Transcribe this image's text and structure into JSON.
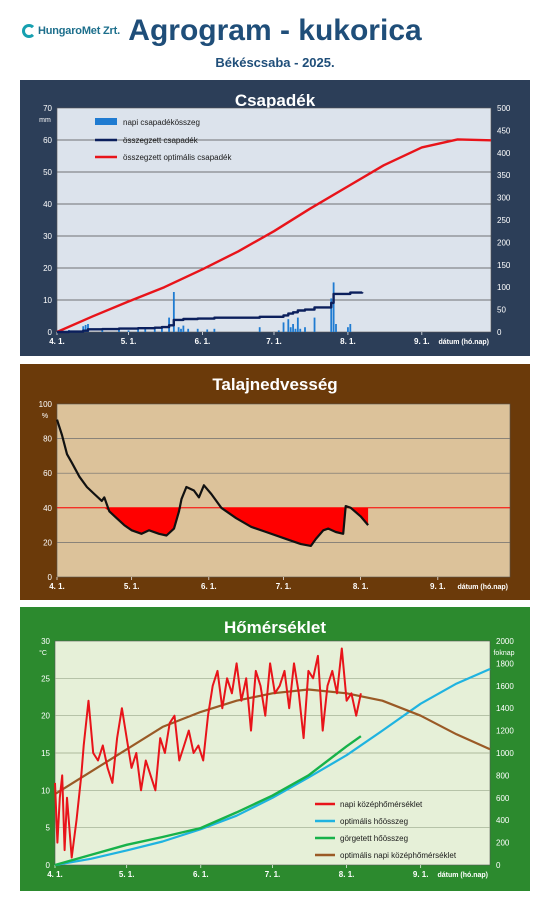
{
  "header": {
    "logo_text": "HungaroMet Zrt.",
    "title": "Agrogram - kukorica",
    "subtitle": "Békéscsaba - 2025."
  },
  "colors": {
    "rain_panel": "#2c3e58",
    "soil_panel": "#6b3a0a",
    "temp_panel": "#2c8a2e",
    "daily_rain": "#1f7bd1",
    "cum_rain": "#0b1f5c",
    "optimal": "#e8141a",
    "soil_fill": "#ff0000",
    "heat_optimal": "#1fb3e0",
    "heat_rolling": "#17b24a",
    "temp_optimal": "#9a5a26"
  },
  "charts": [
    {
      "id": "rain",
      "title": "Csapadék",
      "ylabel_left": "mm",
      "xlabel": "dátum (hó.nap)",
      "x_ticks": [
        "4. 1.",
        "5. 1.",
        "6. 1.",
        "7. 1.",
        "8. 1.",
        "9. 1."
      ],
      "y_ticks_left": [
        "0",
        "10",
        "20",
        "30",
        "40",
        "50",
        "60",
        "70"
      ],
      "y_ticks_right": [
        "0",
        "50",
        "100",
        "150",
        "200",
        "250",
        "300",
        "350",
        "400",
        "450",
        "500"
      ],
      "legend": [
        "napi csapadékösszeg",
        "összegzett csapadék",
        "összegzett optimális csapadék"
      ]
    },
    {
      "id": "soil",
      "title": "Talajnedvesség",
      "ylabel_left": "%",
      "xlabel": "dátum (hó.nap)",
      "x_ticks": [
        "4. 1.",
        "5. 1.",
        "6. 1.",
        "7. 1.",
        "8. 1.",
        "9. 1."
      ],
      "y_ticks_left": [
        "0",
        "20",
        "40",
        "60",
        "80",
        "100"
      ]
    },
    {
      "id": "temp",
      "title": "Hőmérséklet",
      "ylabel_left": "°C",
      "ylabel_right": "foknap",
      "xlabel": "dátum (hó.nap)",
      "x_ticks": [
        "4. 1.",
        "5. 1.",
        "6. 1.",
        "7. 1.",
        "8. 1.",
        "9. 1."
      ],
      "y_ticks_left": [
        "0",
        "5",
        "10",
        "15",
        "20",
        "25",
        "30"
      ],
      "y_ticks_right": [
        "0",
        "200",
        "400",
        "600",
        "800",
        "1000",
        "1200",
        "1400",
        "1600",
        "1800",
        "2000"
      ],
      "legend": [
        "napi középhőmérséklet",
        "optimális hőösszeg",
        "görgetett hőösszeg",
        "optimális napi középhőmérséklet"
      ]
    }
  ],
  "chart_data": [
    {
      "type": "bar",
      "title": "Csapadék",
      "xlabel": "dátum (hó.nap)",
      "ylabel": "mm",
      "x_range": [
        "2025-04-01",
        "2025-09-30"
      ],
      "ylim_left": [
        0,
        70
      ],
      "ylim_right": [
        0,
        500
      ],
      "legend_position": "top-left",
      "series": [
        {
          "name": "napi csapadékösszeg",
          "kind": "bar",
          "axis": "left",
          "x": [
            "2025-04-06",
            "2025-04-10",
            "2025-04-12",
            "2025-04-13",
            "2025-04-14",
            "2025-04-20",
            "2025-04-27",
            "2025-05-01",
            "2025-05-05",
            "2025-05-08",
            "2025-05-12",
            "2025-05-15",
            "2025-05-18",
            "2025-05-20",
            "2025-05-22",
            "2025-05-23",
            "2025-05-24",
            "2025-05-26",
            "2025-05-30",
            "2025-06-03",
            "2025-06-06",
            "2025-06-25",
            "2025-07-03",
            "2025-07-05",
            "2025-07-07",
            "2025-07-08",
            "2025-07-09",
            "2025-07-10",
            "2025-07-11",
            "2025-07-12",
            "2025-07-14",
            "2025-07-18",
            "2025-07-25",
            "2025-07-26",
            "2025-07-27",
            "2025-08-01",
            "2025-08-02"
          ],
          "values": [
            0.6,
            0.4,
            1.8,
            2.2,
            2.5,
            0.8,
            1.0,
            0.5,
            1.0,
            1.2,
            1.0,
            1.5,
            4.5,
            12.5,
            1.5,
            1.0,
            2.0,
            1.0,
            1.0,
            0.8,
            1.0,
            1.5,
            0.5,
            3.0,
            4.0,
            1.5,
            2.5,
            1.0,
            4.5,
            1.0,
            1.5,
            4.5,
            10.5,
            15.5,
            2.5,
            1.5,
            2.5
          ]
        },
        {
          "name": "összegzett csapadék",
          "kind": "step",
          "axis": "right",
          "x": [
            "2025-04-01",
            "2025-04-06",
            "2025-04-12",
            "2025-04-14",
            "2025-04-20",
            "2025-04-27",
            "2025-05-05",
            "2025-05-12",
            "2025-05-15",
            "2025-05-18",
            "2025-05-20",
            "2025-05-24",
            "2025-05-30",
            "2025-06-06",
            "2025-06-25",
            "2025-07-05",
            "2025-07-07",
            "2025-07-09",
            "2025-07-11",
            "2025-07-14",
            "2025-07-18",
            "2025-07-25",
            "2025-07-26",
            "2025-08-02",
            "2025-08-07"
          ],
          "values": [
            0,
            1,
            3,
            6,
            6.5,
            7.5,
            8.5,
            9.5,
            11,
            15,
            27,
            29,
            30,
            32,
            34,
            37,
            41,
            44,
            48,
            50,
            55,
            65,
            85,
            88,
            89
          ]
        },
        {
          "name": "összegzett optimális csapadék",
          "kind": "line",
          "axis": "right",
          "x": [
            "2025-04-01",
            "2025-04-16",
            "2025-05-01",
            "2025-05-16",
            "2025-06-01",
            "2025-06-16",
            "2025-07-01",
            "2025-07-16",
            "2025-08-01",
            "2025-08-16",
            "2025-09-01",
            "2025-09-16",
            "2025-09-30"
          ],
          "values": [
            0,
            35,
            68,
            100,
            140,
            180,
            225,
            275,
            325,
            372,
            412,
            430,
            428
          ]
        }
      ]
    },
    {
      "type": "area",
      "title": "Talajnedvesség",
      "xlabel": "dátum (hó.nap)",
      "ylabel": "%",
      "x_range": [
        "2025-04-01",
        "2025-09-30"
      ],
      "ylim": [
        0,
        100
      ],
      "threshold": 40,
      "series": [
        {
          "kind": "line",
          "x": [
            "2025-04-01",
            "2025-04-03",
            "2025-04-05",
            "2025-04-07",
            "2025-04-10",
            "2025-04-13",
            "2025-04-16",
            "2025-04-19",
            "2025-04-20",
            "2025-04-22",
            "2025-04-25",
            "2025-04-28",
            "2025-05-01",
            "2025-05-05",
            "2025-05-08",
            "2025-05-12",
            "2025-05-15",
            "2025-05-18",
            "2025-05-20",
            "2025-05-21",
            "2025-05-23",
            "2025-05-26",
            "2025-05-28",
            "2025-05-30",
            "2025-06-02",
            "2025-06-06",
            "2025-06-12",
            "2025-06-18",
            "2025-06-24",
            "2025-06-30",
            "2025-07-04",
            "2025-07-08",
            "2025-07-12",
            "2025-07-14",
            "2025-07-17",
            "2025-07-19",
            "2025-07-22",
            "2025-07-25",
            "2025-07-26",
            "2025-07-28",
            "2025-08-01",
            "2025-08-04"
          ],
          "values": [
            91,
            82,
            71,
            66,
            58,
            52,
            48,
            44,
            46,
            38,
            34,
            30,
            27,
            25,
            27,
            25,
            24,
            28,
            38,
            45,
            52,
            50,
            46,
            53,
            48,
            40,
            34,
            29,
            26,
            23,
            21,
            19,
            18,
            22,
            27,
            28,
            26,
            25,
            41,
            40,
            35,
            30
          ]
        }
      ]
    },
    {
      "type": "line",
      "title": "Hőmérséklet",
      "xlabel": "dátum (hó.nap)",
      "x_range": [
        "2025-04-01",
        "2025-09-30"
      ],
      "ylim_left": [
        0,
        30
      ],
      "ylim_right": [
        0,
        2000
      ],
      "legend_position": "bottom-right",
      "series": [
        {
          "name": "napi középhőmérséklet",
          "axis": "left",
          "x": [
            "2025-04-01",
            "2025-04-02",
            "2025-04-03",
            "2025-04-04",
            "2025-04-05",
            "2025-04-06",
            "2025-04-08",
            "2025-04-10",
            "2025-04-12",
            "2025-04-13",
            "2025-04-15",
            "2025-04-17",
            "2025-04-19",
            "2025-04-21",
            "2025-04-23",
            "2025-04-25",
            "2025-04-27",
            "2025-04-29",
            "2025-05-01",
            "2025-05-03",
            "2025-05-05",
            "2025-05-07",
            "2025-05-09",
            "2025-05-11",
            "2025-05-13",
            "2025-05-15",
            "2025-05-17",
            "2025-05-19",
            "2025-05-21",
            "2025-05-23",
            "2025-05-25",
            "2025-05-27",
            "2025-05-29",
            "2025-05-31",
            "2025-06-02",
            "2025-06-04",
            "2025-06-06",
            "2025-06-08",
            "2025-06-10",
            "2025-06-12",
            "2025-06-14",
            "2025-06-16",
            "2025-06-18",
            "2025-06-20",
            "2025-06-22",
            "2025-06-24",
            "2025-06-26",
            "2025-06-28",
            "2025-06-30",
            "2025-07-02",
            "2025-07-04",
            "2025-07-06",
            "2025-07-08",
            "2025-07-10",
            "2025-07-12",
            "2025-07-14",
            "2025-07-16",
            "2025-07-18",
            "2025-07-20",
            "2025-07-22",
            "2025-07-24",
            "2025-07-26",
            "2025-07-28",
            "2025-07-30",
            "2025-08-01",
            "2025-08-03",
            "2025-08-05",
            "2025-08-07"
          ],
          "values": [
            11,
            3,
            9,
            12,
            2,
            9,
            1,
            6,
            12,
            16,
            22,
            15,
            14,
            16,
            13,
            11,
            17,
            21,
            17,
            13,
            15,
            10,
            14,
            12,
            10,
            17,
            15,
            19,
            20,
            14,
            16,
            18,
            15,
            16,
            14,
            20,
            24,
            26,
            21,
            25,
            23,
            27,
            22,
            25,
            18,
            26,
            24,
            20,
            27,
            23,
            24,
            26,
            21,
            27,
            23,
            17,
            26,
            25,
            28,
            18,
            24,
            26,
            23,
            29,
            22,
            23,
            20,
            23
          ]
        },
        {
          "name": "optimális hőösszeg",
          "axis": "right",
          "x": [
            "2025-04-01",
            "2025-04-16",
            "2025-05-01",
            "2025-05-16",
            "2025-06-01",
            "2025-06-16",
            "2025-07-01",
            "2025-07-16",
            "2025-08-01",
            "2025-08-16",
            "2025-09-01",
            "2025-09-16",
            "2025-09-30"
          ],
          "values": [
            0,
            55,
            130,
            210,
            320,
            440,
            600,
            780,
            980,
            1200,
            1440,
            1620,
            1750
          ]
        },
        {
          "name": "görgetett hőösszeg",
          "axis": "right",
          "x": [
            "2025-04-01",
            "2025-04-16",
            "2025-05-01",
            "2025-05-16",
            "2025-06-01",
            "2025-06-16",
            "2025-07-01",
            "2025-07-16",
            "2025-08-01",
            "2025-08-07"
          ],
          "values": [
            0,
            90,
            180,
            250,
            330,
            470,
            620,
            800,
            1060,
            1150
          ]
        },
        {
          "name": "optimális napi középhőmérséklet",
          "axis": "left",
          "x": [
            "2025-04-01",
            "2025-04-16",
            "2025-05-01",
            "2025-05-16",
            "2025-06-01",
            "2025-06-16",
            "2025-07-01",
            "2025-07-16",
            "2025-08-01",
            "2025-08-16",
            "2025-09-01",
            "2025-09-16",
            "2025-09-30"
          ],
          "values": [
            9.5,
            12.5,
            15.5,
            18.5,
            20.5,
            22,
            23,
            23.5,
            23,
            22,
            20,
            17.5,
            15.5
          ]
        }
      ]
    }
  ]
}
